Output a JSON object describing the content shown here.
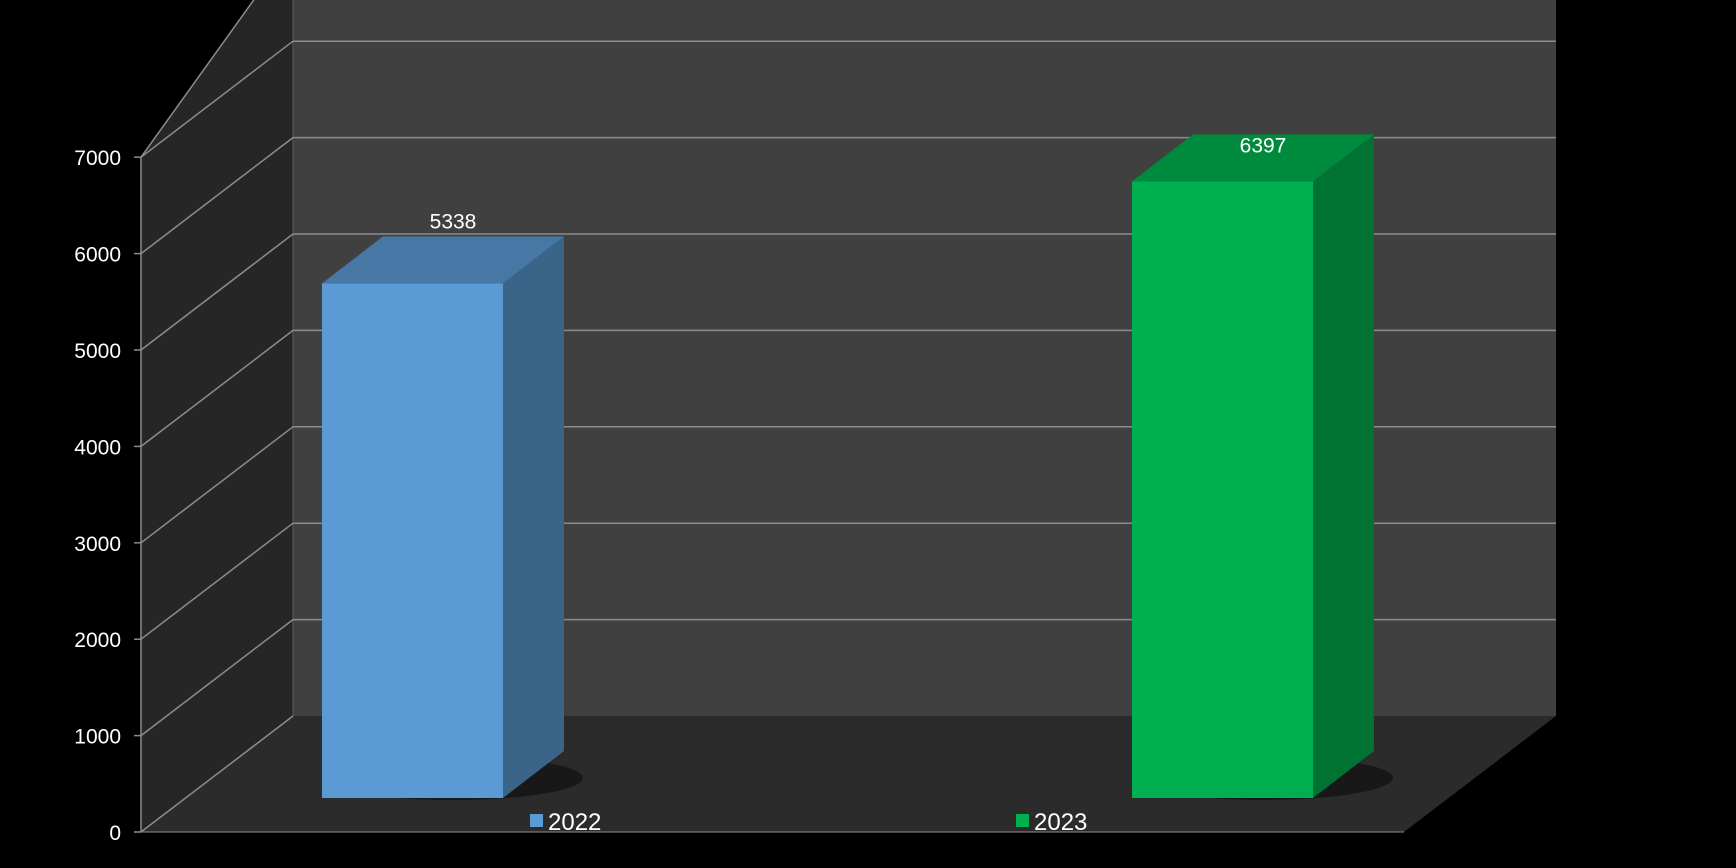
{
  "chart_data": {
    "type": "bar",
    "categories": [
      "2022",
      "2023"
    ],
    "values": [
      5338,
      6397
    ],
    "ylim": [
      0,
      7000
    ],
    "yticks": [
      0,
      1000,
      2000,
      3000,
      4000,
      5000,
      6000,
      7000
    ],
    "grid": true,
    "legend_placement": "bottom",
    "colors": {
      "background": "#000000",
      "back_wall": "#404040",
      "side_wall": "#262626",
      "floor": "#2b2b2b",
      "grid": "#8c8c8c",
      "text": "#ffffff"
    },
    "series": [
      {
        "category": "2022",
        "value": 5338,
        "color": "#5b9bd5",
        "top_color": "#4677a5",
        "side_color": "#3b6489"
      },
      {
        "category": "2023",
        "value": 6397,
        "color": "#00b050",
        "top_color": "#008a3d",
        "side_color": "#007232"
      }
    ]
  }
}
